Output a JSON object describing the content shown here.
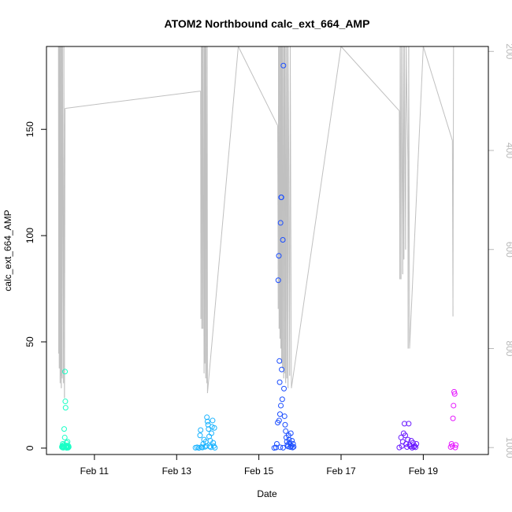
{
  "chart_data": {
    "type": "scatter",
    "title": "ATOM2 Northbound calc_ext_664_AMP",
    "xlabel": "Date",
    "ylabel": "calc_ext_664_AMP",
    "x_unit": "date",
    "xlim": [
      "2023-02-09 20:00",
      "2023-02-20 14:00"
    ],
    "ylim": [
      -3,
      189
    ],
    "x_ticks": [
      {
        "date": "2023-02-11",
        "label": "Feb 11"
      },
      {
        "date": "2023-02-13",
        "label": "Feb 13"
      },
      {
        "date": "2023-02-15",
        "label": "Feb 15"
      },
      {
        "date": "2023-02-17",
        "label": "Feb 17"
      },
      {
        "date": "2023-02-19",
        "label": "Feb 19"
      }
    ],
    "y_ticks": [
      0,
      50,
      100,
      150
    ],
    "right_axis": {
      "description": "depth (reversed)",
      "ticks": [
        200,
        400,
        600,
        800,
        1000
      ],
      "range": [
        1014,
        190
      ],
      "color": "#b8b8b8"
    },
    "grid": false,
    "legend": "none",
    "point_style": "open-circle",
    "series": [
      {
        "color": "#1affc6",
        "points": [
          [
            "2023-02-10 05:00",
            0.5
          ],
          [
            "2023-02-10 05:10",
            1.0
          ],
          [
            "2023-02-10 05:20",
            0.3
          ],
          [
            "2023-02-10 05:30",
            2.0
          ],
          [
            "2023-02-10 05:40",
            0.8
          ],
          [
            "2023-02-10 05:50",
            0.2
          ],
          [
            "2023-02-10 06:00",
            1.5
          ],
          [
            "2023-02-10 06:10",
            0.4
          ],
          [
            "2023-02-10 06:20",
            9.0
          ],
          [
            "2023-02-10 06:30",
            0.6
          ],
          [
            "2023-02-10 06:40",
            5.0
          ],
          [
            "2023-02-10 06:50",
            36.0
          ],
          [
            "2023-02-10 07:00",
            22.0
          ],
          [
            "2023-02-10 07:10",
            19.0
          ],
          [
            "2023-02-10 07:20",
            0.3
          ],
          [
            "2023-02-10 07:30",
            0.9
          ],
          [
            "2023-02-10 07:40",
            2.5
          ],
          [
            "2023-02-10 07:50",
            0.1
          ],
          [
            "2023-02-10 08:00",
            1.2
          ],
          [
            "2023-02-10 08:10",
            0.7
          ],
          [
            "2023-02-10 08:20",
            3.0
          ],
          [
            "2023-02-10 08:30",
            0.4
          ],
          [
            "2023-02-10 08:40",
            0.2
          ],
          [
            "2023-02-10 08:50",
            1.0
          ],
          [
            "2023-02-10 09:00",
            0.5
          ]
        ]
      },
      {
        "color": "#1ab3ff",
        "points": [
          [
            "2023-02-13 11:00",
            0.2
          ],
          [
            "2023-02-13 12:00",
            0.4
          ],
          [
            "2023-02-13 13:00",
            0.1
          ],
          [
            "2023-02-13 13:40",
            6.0
          ],
          [
            "2023-02-13 14:00",
            8.5
          ],
          [
            "2023-02-13 14:20",
            0.5
          ],
          [
            "2023-02-13 15:00",
            0.3
          ],
          [
            "2023-02-13 15:30",
            2.0
          ],
          [
            "2023-02-13 16:00",
            4.0
          ],
          [
            "2023-02-13 16:30",
            0.6
          ],
          [
            "2023-02-13 17:00",
            3.0
          ],
          [
            "2023-02-13 17:20",
            1.0
          ],
          [
            "2023-02-13 17:40",
            14.5
          ],
          [
            "2023-02-13 18:00",
            12.5
          ],
          [
            "2023-02-13 18:20",
            11.0
          ],
          [
            "2023-02-13 18:40",
            9.0
          ],
          [
            "2023-02-13 19:00",
            5.5
          ],
          [
            "2023-02-13 19:20",
            0.8
          ],
          [
            "2023-02-13 19:40",
            3.5
          ],
          [
            "2023-02-13 20:00",
            0.4
          ],
          [
            "2023-02-13 20:20",
            7.0
          ],
          [
            "2023-02-13 20:40",
            10.0
          ],
          [
            "2023-02-13 21:00",
            13.0
          ],
          [
            "2023-02-13 21:20",
            2.5
          ],
          [
            "2023-02-13 21:40",
            1.0
          ],
          [
            "2023-02-13 22:00",
            9.5
          ],
          [
            "2023-02-13 22:20",
            0.2
          ]
        ]
      },
      {
        "color": "#1a4dff",
        "points": [
          [
            "2023-02-15 09:00",
            0.1
          ],
          [
            "2023-02-15 10:00",
            0.3
          ],
          [
            "2023-02-15 10:30",
            2.0
          ],
          [
            "2023-02-15 11:00",
            12.0
          ],
          [
            "2023-02-15 11:20",
            79.0
          ],
          [
            "2023-02-15 11:40",
            90.5
          ],
          [
            "2023-02-15 12:00",
            41.0
          ],
          [
            "2023-02-15 12:20",
            16.0
          ],
          [
            "2023-02-15 12:40",
            106.0
          ],
          [
            "2023-02-15 13:00",
            118.0
          ],
          [
            "2023-02-15 13:20",
            37.0
          ],
          [
            "2023-02-15 13:40",
            23.0
          ],
          [
            "2023-02-15 14:00",
            98.0
          ],
          [
            "2023-02-15 14:20",
            180.0
          ],
          [
            "2023-02-15 14:40",
            28.0
          ],
          [
            "2023-02-15 15:00",
            15.0
          ],
          [
            "2023-02-15 15:20",
            11.0
          ],
          [
            "2023-02-15 15:40",
            8.0
          ],
          [
            "2023-02-15 16:00",
            5.0
          ],
          [
            "2023-02-15 16:20",
            3.0
          ],
          [
            "2023-02-15 16:40",
            1.5
          ],
          [
            "2023-02-15 17:00",
            0.8
          ],
          [
            "2023-02-15 17:20",
            6.0
          ],
          [
            "2023-02-15 17:40",
            4.0
          ],
          [
            "2023-02-15 18:00",
            2.5
          ],
          [
            "2023-02-15 18:20",
            0.5
          ],
          [
            "2023-02-15 18:40",
            7.0
          ],
          [
            "2023-02-15 19:00",
            1.0
          ],
          [
            "2023-02-15 19:20",
            3.5
          ],
          [
            "2023-02-15 19:40",
            0.3
          ],
          [
            "2023-02-15 20:00",
            2.0
          ],
          [
            "2023-02-15 20:20",
            0.6
          ],
          [
            "2023-02-15 12:10",
            31.0
          ],
          [
            "2023-02-15 12:50",
            20.0
          ],
          [
            "2023-02-15 13:10",
            118.0
          ],
          [
            "2023-02-15 11:50",
            13.0
          ],
          [
            "2023-02-15 12:30",
            0.4
          ],
          [
            "2023-02-15 14:10",
            0.2
          ]
        ]
      },
      {
        "color": "#6a1aff",
        "points": [
          [
            "2023-02-18 10:00",
            0.3
          ],
          [
            "2023-02-18 11:00",
            5.0
          ],
          [
            "2023-02-18 11:30",
            1.0
          ],
          [
            "2023-02-18 12:00",
            3.0
          ],
          [
            "2023-02-18 12:30",
            7.0
          ],
          [
            "2023-02-18 13:00",
            11.5
          ],
          [
            "2023-02-18 13:30",
            6.0
          ],
          [
            "2023-02-18 14:00",
            2.0
          ],
          [
            "2023-02-18 14:30",
            0.5
          ],
          [
            "2023-02-18 15:00",
            4.0
          ],
          [
            "2023-02-18 15:30",
            11.5
          ],
          [
            "2023-02-18 16:00",
            1.5
          ],
          [
            "2023-02-18 16:30",
            0.8
          ],
          [
            "2023-02-18 17:00",
            3.5
          ],
          [
            "2023-02-18 17:30",
            0.2
          ],
          [
            "2023-02-18 18:00",
            2.5
          ],
          [
            "2023-02-18 18:30",
            0.6
          ],
          [
            "2023-02-18 19:00",
            1.0
          ],
          [
            "2023-02-18 19:30",
            0.4
          ],
          [
            "2023-02-18 20:00",
            2.0
          ]
        ]
      },
      {
        "color": "#e61aff",
        "points": [
          [
            "2023-02-19 16:00",
            0.5
          ],
          [
            "2023-02-19 16:30",
            2.0
          ],
          [
            "2023-02-19 17:00",
            1.0
          ],
          [
            "2023-02-19 17:20",
            14.0
          ],
          [
            "2023-02-19 17:40",
            20.0
          ],
          [
            "2023-02-19 18:00",
            26.5
          ],
          [
            "2023-02-19 18:20",
            25.5
          ],
          [
            "2023-02-19 18:40",
            0.3
          ],
          [
            "2023-02-19 19:00",
            1.5
          ]
        ]
      }
    ],
    "depth_trace": {
      "color": "#c0c0c0",
      "points": [
        [
          "2023-02-10 03:00",
          190
        ],
        [
          "2023-02-10 03:10",
          810
        ],
        [
          "2023-02-10 03:20",
          190
        ],
        [
          "2023-02-10 03:30",
          840
        ],
        [
          "2023-02-10 03:40",
          190
        ],
        [
          "2023-02-10 04:00",
          870
        ],
        [
          "2023-02-10 04:10",
          190
        ],
        [
          "2023-02-10 04:20",
          855
        ],
        [
          "2023-02-10 04:30",
          190
        ],
        [
          "2023-02-10 04:40",
          880
        ],
        [
          "2023-02-10 04:50",
          190
        ],
        [
          "2023-02-10 05:10",
          860
        ],
        [
          "2023-02-10 05:20",
          190
        ],
        [
          "2023-02-10 06:00",
          870
        ],
        [
          "2023-02-10 06:10",
          190
        ],
        [
          "2023-02-10 06:30",
          900
        ],
        [
          "2023-02-10 06:50",
          315
        ],
        [
          "2023-02-13 14:00",
          280
        ],
        [
          "2023-02-13 14:10",
          740
        ],
        [
          "2023-02-13 14:30",
          190
        ],
        [
          "2023-02-13 14:40",
          760
        ],
        [
          "2023-02-13 15:00",
          190
        ],
        [
          "2023-02-13 15:20",
          760
        ],
        [
          "2023-02-13 15:30",
          190
        ],
        [
          "2023-02-13 16:00",
          850
        ],
        [
          "2023-02-13 16:10",
          190
        ],
        [
          "2023-02-13 16:30",
          830
        ],
        [
          "2023-02-13 16:40",
          190
        ],
        [
          "2023-02-13 17:00",
          860
        ],
        [
          "2023-02-13 17:10",
          190
        ],
        [
          "2023-02-13 17:40",
          870
        ],
        [
          "2023-02-13 17:50",
          190
        ],
        [
          "2023-02-13 18:00",
          890
        ],
        [
          "2023-02-14 12:00",
          190
        ],
        [
          "2023-02-15 11:00",
          350
        ],
        [
          "2023-02-15 11:20",
          720
        ],
        [
          "2023-02-15 11:30",
          190
        ],
        [
          "2023-02-15 11:50",
          760
        ],
        [
          "2023-02-15 12:00",
          190
        ],
        [
          "2023-02-15 12:20",
          780
        ],
        [
          "2023-02-15 12:30",
          190
        ],
        [
          "2023-02-15 12:50",
          800
        ],
        [
          "2023-02-15 13:00",
          190
        ],
        [
          "2023-02-15 13:20",
          830
        ],
        [
          "2023-02-15 13:30",
          190
        ],
        [
          "2023-02-15 13:50",
          840
        ],
        [
          "2023-02-15 14:00",
          190
        ],
        [
          "2023-02-15 14:30",
          860
        ],
        [
          "2023-02-15 14:40",
          190
        ],
        [
          "2023-02-15 15:00",
          850
        ],
        [
          "2023-02-15 15:10",
          190
        ],
        [
          "2023-02-15 15:40",
          870
        ],
        [
          "2023-02-15 15:50",
          190
        ],
        [
          "2023-02-15 16:20",
          860
        ],
        [
          "2023-02-15 16:30",
          190
        ],
        [
          "2023-02-15 17:00",
          880
        ],
        [
          "2023-02-15 17:10",
          190
        ],
        [
          "2023-02-15 18:00",
          855
        ],
        [
          "2023-02-15 18:20",
          190
        ],
        [
          "2023-02-15 19:00",
          880
        ],
        [
          "2023-02-17 00:00",
          190
        ],
        [
          "2023-02-18 10:00",
          320
        ],
        [
          "2023-02-18 10:20",
          660
        ],
        [
          "2023-02-18 10:30",
          190
        ],
        [
          "2023-02-18 11:00",
          660
        ],
        [
          "2023-02-18 11:10",
          190
        ],
        [
          "2023-02-18 12:00",
          650
        ],
        [
          "2023-02-18 12:10",
          190
        ],
        [
          "2023-02-18 12:40",
          620
        ],
        [
          "2023-02-18 13:00",
          190
        ],
        [
          "2023-02-18 13:40",
          600
        ],
        [
          "2023-02-18 14:00",
          190
        ],
        [
          "2023-02-18 15:00",
          420
        ],
        [
          "2023-02-18 15:10",
          800
        ],
        [
          "2023-02-18 15:30",
          190
        ],
        [
          "2023-02-18 16:00",
          800
        ],
        [
          "2023-02-19 00:00",
          190
        ],
        [
          "2023-02-19 17:00",
          380
        ],
        [
          "2023-02-19 17:20",
          735
        ],
        [
          "2023-02-19 17:40",
          190
        ]
      ]
    }
  }
}
